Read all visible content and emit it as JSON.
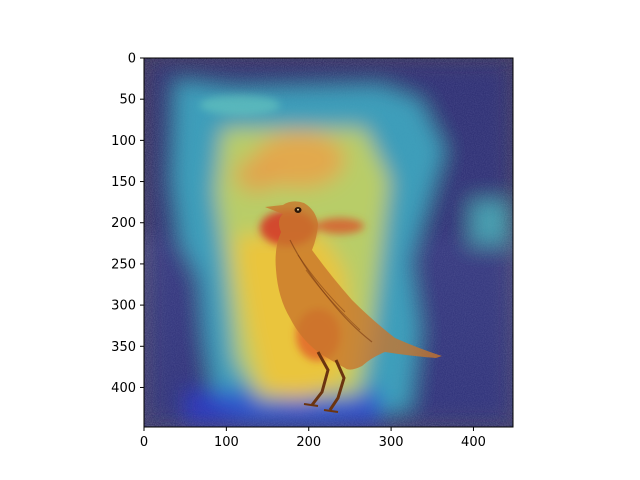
{
  "figure": {
    "kind": "image-with-heatmap-overlay",
    "subject": "bird",
    "colormap": "jet",
    "axis_color": "#000000",
    "background": "#ffffff"
  },
  "axes": {
    "x_range": [
      0,
      448
    ],
    "y_range": [
      0,
      448
    ],
    "y_inverted": true,
    "x_ticks": [
      {
        "value": 0,
        "label": "0"
      },
      {
        "value": 100,
        "label": "100"
      },
      {
        "value": 200,
        "label": "200"
      },
      {
        "value": 300,
        "label": "300"
      },
      {
        "value": 400,
        "label": "400"
      }
    ],
    "y_ticks": [
      {
        "value": 0,
        "label": "0"
      },
      {
        "value": 50,
        "label": "50"
      },
      {
        "value": 100,
        "label": "100"
      },
      {
        "value": 150,
        "label": "150"
      },
      {
        "value": 200,
        "label": "200"
      },
      {
        "value": 250,
        "label": "250"
      },
      {
        "value": 300,
        "label": "300"
      },
      {
        "value": 350,
        "label": "350"
      },
      {
        "value": 400,
        "label": "400"
      }
    ]
  }
}
